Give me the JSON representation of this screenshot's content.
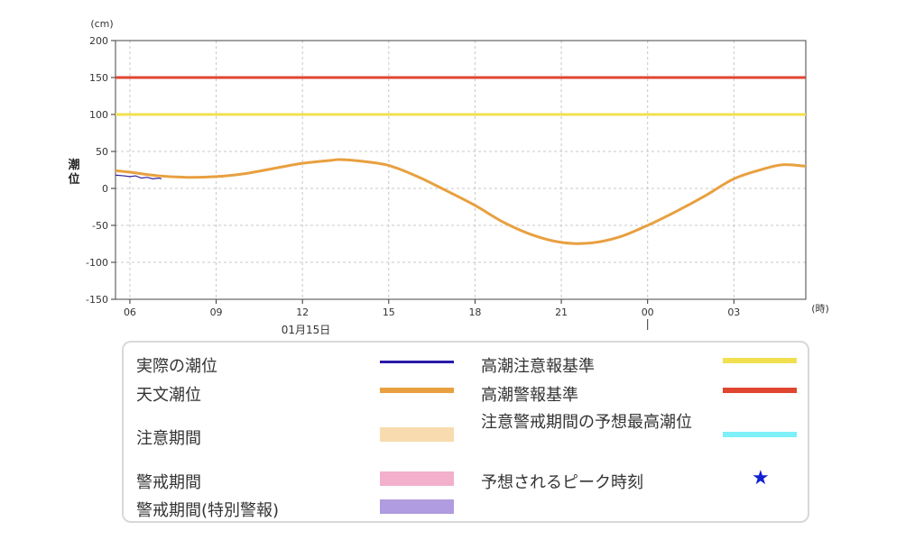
{
  "chart_data": {
    "type": "line",
    "y_unit": "(cm)",
    "ylabel": "潮位",
    "x_unit": "(時)",
    "date_label": "01月15日",
    "ylim": [
      -150,
      200
    ],
    "y_ticks": [
      200,
      150,
      100,
      50,
      0,
      -50,
      -100,
      -150
    ],
    "x_tick_labels": [
      "06",
      "09",
      "12",
      "15",
      "18",
      "21",
      "00",
      "03"
    ],
    "x_tick_hours": [
      6,
      9,
      12,
      15,
      18,
      21,
      24,
      27
    ],
    "xlim_hours": [
      5.5,
      29.5
    ],
    "grid": true,
    "series": [
      {
        "name": "天文潮位",
        "color": "#e8a040",
        "x_hours": [
          5.5,
          6,
          7,
          8,
          9,
          10,
          11,
          12,
          13,
          13.3,
          14,
          15,
          16,
          17,
          18,
          19,
          20,
          21,
          22,
          23,
          24,
          25,
          26,
          27,
          28,
          28.7,
          29.5
        ],
        "values": [
          24,
          22,
          17,
          15,
          16,
          20,
          27,
          34,
          38,
          39,
          37,
          31,
          16,
          -3,
          -23,
          -46,
          -63,
          -73,
          -74,
          -66,
          -50,
          -31,
          -10,
          13,
          26,
          32,
          30
        ]
      },
      {
        "name": "実際の潮位",
        "color": "#3020a0",
        "x_hours": [
          5.5,
          5.8,
          6.0,
          6.2,
          6.4,
          6.6,
          6.8,
          7.0,
          7.1
        ],
        "values": [
          18,
          17,
          16,
          17,
          14,
          15,
          13,
          14,
          13
        ]
      },
      {
        "name": "高潮注意報基準",
        "color": "#f0e050",
        "value": 100
      },
      {
        "name": "高潮警報基準",
        "color": "#e04530",
        "value": 150
      }
    ]
  },
  "legend": {
    "items": [
      {
        "label": "実際の潮位",
        "color": "#2a1aa8",
        "kind": "line"
      },
      {
        "label": "天文潮位",
        "color": "#e8a040",
        "kind": "thick"
      },
      {
        "label": "注意期間",
        "color": "#f8dcb0",
        "kind": "box"
      },
      {
        "label": "警戒期間",
        "color": "#f2b0cc",
        "kind": "box"
      },
      {
        "label": "警戒期間(特別警報)",
        "color": "#b09ce0",
        "kind": "box"
      },
      {
        "label": "高潮注意報基準",
        "color": "#f0e050",
        "kind": "thick"
      },
      {
        "label": "高潮警報基準",
        "color": "#e04530",
        "kind": "thick"
      },
      {
        "label": "注意警戒期間の予想最高潮位",
        "color": "#7ef0f8",
        "kind": "thick"
      },
      {
        "label": "予想されるピーク時刻",
        "color": "#1020d0",
        "kind": "star",
        "symbol": "★"
      }
    ]
  }
}
